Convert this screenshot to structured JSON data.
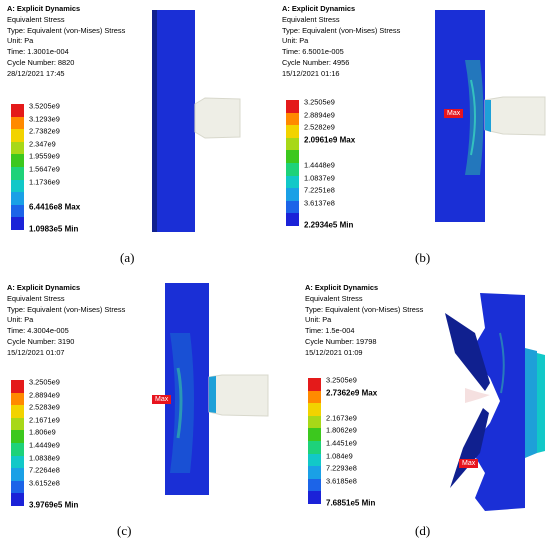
{
  "panels": [
    {
      "title": "A: Explicit Dynamics",
      "result": "Equivalent Stress",
      "type": "Type: Equivalent (von-Mises) Stress",
      "unit": "Unit: Pa",
      "time": "Time: 1.3001e-004",
      "cycle": "Cycle Number: 8820",
      "date": "28/12/2021 17:45",
      "legend": [
        "3.5205e9",
        "3.1293e9",
        "2.7382e9",
        "2.347e9",
        "1.9559e9",
        "1.5647e9",
        "1.1736e9",
        "",
        "6.4416e8 Max",
        "1.0983e5 Min"
      ],
      "caption": "(a)"
    },
    {
      "title": "A: Explicit Dynamics",
      "result": "Equivalent Stress",
      "type": "Type: Equivalent (von-Mises) Stress",
      "unit": "Unit: Pa",
      "time": "Time: 6.5001e-005",
      "cycle": "Cycle Number: 4956",
      "date": "15/12/2021 01:16",
      "legend": [
        "3.2505e9",
        "2.8894e9",
        "2.5282e9",
        "2.0961e9 Max",
        "",
        "1.4448e9",
        "1.0837e9",
        "7.2251e8",
        "3.6137e8",
        "2.2934e5 Min"
      ],
      "max_flag": "Max",
      "caption": "(b)"
    },
    {
      "title": "A: Explicit Dynamics",
      "result": "Equivalent Stress",
      "type": "Type: Equivalent (von-Mises) Stress",
      "unit": "Unit: Pa",
      "time": "Time: 4.3004e-005",
      "cycle": "Cycle Number: 3190",
      "date": "15/12/2021 01:07",
      "legend": [
        "3.2505e9",
        "2.8894e9",
        "2.5283e9",
        "2.1671e9",
        "1.806e9",
        "1.4449e9",
        "1.0838e9",
        "7.2264e8",
        "3.6152e8",
        "3.9769e5 Min"
      ],
      "max_flag": "Max",
      "caption": "(c)"
    },
    {
      "title": "A: Explicit Dynamics",
      "result": "Equivalent Stress",
      "type": "Type: Equivalent (von-Mises) Stress",
      "unit": "Unit: Pa",
      "time": "Time: 1.5e-004",
      "cycle": "Cycle Number: 19798",
      "date": "15/12/2021 01:09",
      "legend": [
        "3.2505e9",
        "2.7362e9 Max",
        "",
        "2.1673e9",
        "1.8062e9",
        "1.4451e9",
        "1.084e9",
        "7.2293e8",
        "3.6185e8",
        "7.6851e5 Min"
      ],
      "max_flag": "Max",
      "caption": "(d)"
    }
  ],
  "colors": {
    "plate": "#1a2fd6",
    "plate_dark": "#10208f",
    "projectile": "#eeeee6",
    "max_flag": "#e8141e",
    "legend_bands": [
      "#e41a1a",
      "#ff8a00",
      "#f2d300",
      "#a8d818",
      "#3cc81e",
      "#1ed27a",
      "#12c8c8",
      "#1aa0e6",
      "#1c64e8",
      "#1b22d8"
    ]
  }
}
